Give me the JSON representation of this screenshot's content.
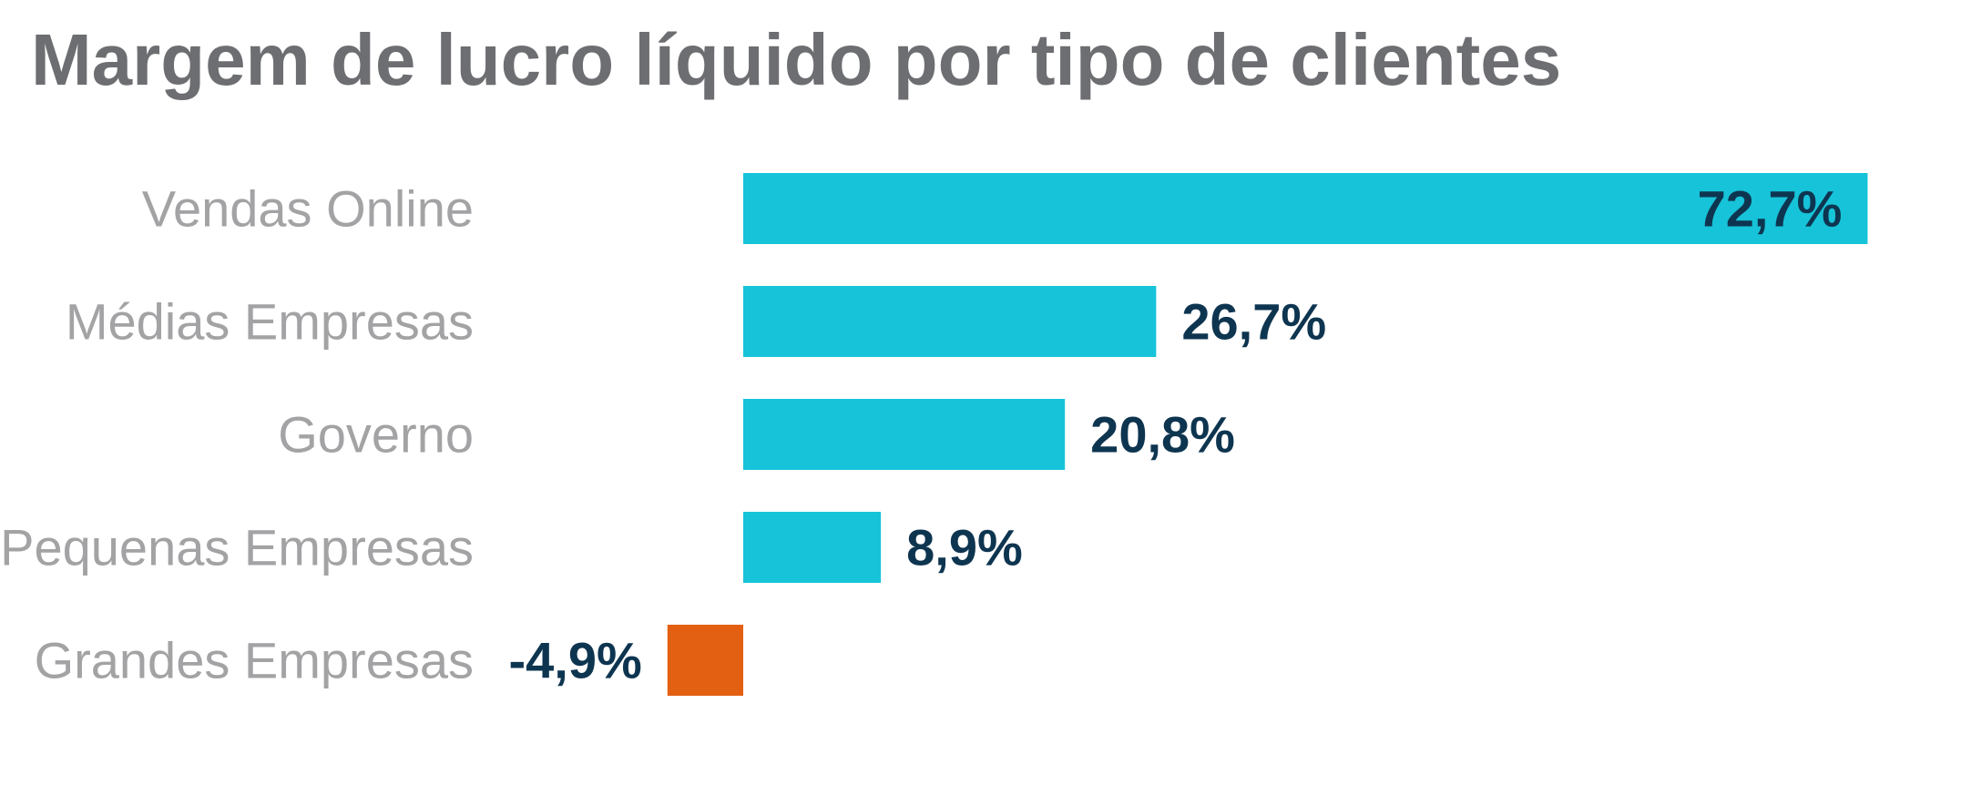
{
  "chart_data": {
    "type": "bar",
    "orientation": "horizontal",
    "title": "Margem de lucro líquido por tipo de clientes",
    "xlabel": "",
    "ylabel": "",
    "grid": false,
    "categories": [
      "Vendas Online",
      "Médias Empresas",
      "Governo",
      "Pequenas Empresas",
      "Grandes Empresas"
    ],
    "values": [
      72.7,
      26.7,
      20.8,
      8.9,
      -4.9
    ],
    "value_labels": [
      "72,7%",
      "26,7%",
      "20,8%",
      "8,9%",
      "-4,9%"
    ],
    "colors": {
      "positive": "#17c3d8",
      "negative": "#e35f12"
    }
  }
}
